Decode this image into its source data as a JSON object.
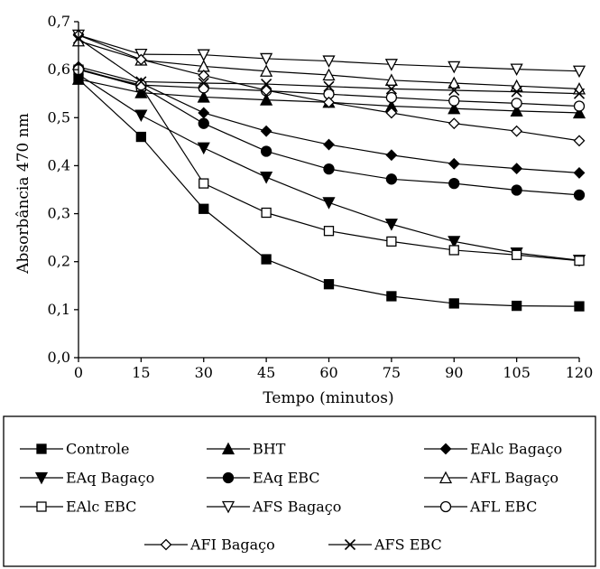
{
  "chart_data": {
    "type": "line",
    "title": "",
    "xlabel": "Tempo (minutos)",
    "ylabel": "Absorbância 470 nm",
    "x": [
      0,
      15,
      30,
      45,
      60,
      75,
      90,
      105,
      120
    ],
    "xlim": [
      0,
      120
    ],
    "ylim": [
      0,
      0.7
    ],
    "x_ticks": [
      "0",
      "15",
      "30",
      "45",
      "60",
      "75",
      "90",
      "105",
      "120"
    ],
    "y_ticks": [
      "0,0",
      "0,1",
      "0,2",
      "0,3",
      "0,4",
      "0,5",
      "0,6",
      "0,7"
    ],
    "grid": false,
    "legend_position": "bottom",
    "series": [
      {
        "name": "Controle",
        "marker": "filled-square",
        "values": [
          0.58,
          0.46,
          0.31,
          0.205,
          0.153,
          0.128,
          0.113,
          0.108,
          0.107
        ]
      },
      {
        "name": "BHT",
        "marker": "filled-triangle-up",
        "values": [
          0.58,
          0.552,
          0.543,
          0.537,
          0.532,
          0.524,
          0.519,
          0.514,
          0.51
        ]
      },
      {
        "name": "EAlc Bagaço",
        "marker": "filled-diamond",
        "values": [
          0.606,
          0.572,
          0.51,
          0.472,
          0.444,
          0.422,
          0.404,
          0.394,
          0.385
        ]
      },
      {
        "name": "EAq Bagaço",
        "marker": "filled-triangle-down",
        "values": [
          0.59,
          0.505,
          0.437,
          0.376,
          0.323,
          0.278,
          0.242,
          0.218,
          0.203
        ]
      },
      {
        "name": "EAq EBC",
        "marker": "filled-circle",
        "values": [
          0.602,
          0.565,
          0.488,
          0.43,
          0.393,
          0.372,
          0.363,
          0.349,
          0.339
        ]
      },
      {
        "name": "AFL Bagaço",
        "marker": "open-triangle-up",
        "values": [
          0.66,
          0.62,
          0.607,
          0.597,
          0.589,
          0.578,
          0.572,
          0.566,
          0.56
        ]
      },
      {
        "name": "EAlc EBC",
        "marker": "open-square",
        "values": [
          0.6,
          0.565,
          0.363,
          0.302,
          0.264,
          0.242,
          0.224,
          0.214,
          0.202
        ]
      },
      {
        "name": "AFS Bagaço",
        "marker": "open-triangle-down",
        "values": [
          0.672,
          0.632,
          0.631,
          0.623,
          0.618,
          0.611,
          0.606,
          0.601,
          0.597
        ]
      },
      {
        "name": "AFL EBC",
        "marker": "open-circle",
        "values": [
          0.6,
          0.568,
          0.562,
          0.556,
          0.549,
          0.542,
          0.535,
          0.53,
          0.524
        ]
      },
      {
        "name": "AFI Bagaço",
        "marker": "open-diamond",
        "values": [
          0.672,
          0.621,
          0.588,
          0.557,
          0.532,
          0.51,
          0.488,
          0.472,
          0.452
        ]
      },
      {
        "name": "AFS EBC",
        "marker": "x-cross",
        "values": [
          0.665,
          0.575,
          0.572,
          0.57,
          0.565,
          0.56,
          0.557,
          0.554,
          0.55
        ]
      }
    ]
  }
}
